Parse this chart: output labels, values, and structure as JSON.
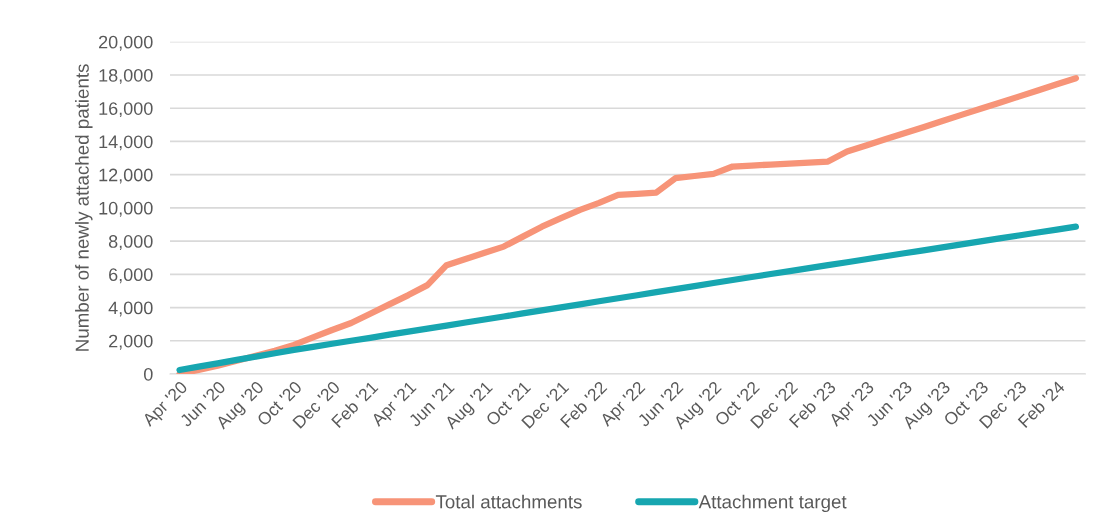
{
  "chart_data": {
    "type": "line",
    "ylabel": "Number of newly attached patients",
    "categories": [
      "Apr '20",
      null,
      "Jun '20",
      null,
      "Aug '20",
      null,
      "Oct '20",
      null,
      "Dec '20",
      null,
      "Feb '21",
      null,
      "Apr '21",
      null,
      "Jun '21",
      null,
      "Aug '21",
      null,
      "Oct '21",
      null,
      "Dec '21",
      null,
      "Feb '22",
      null,
      "Apr '22",
      null,
      "Jun '22",
      null,
      "Aug '22",
      null,
      "Oct '22",
      null,
      "Dec '22",
      null,
      "Feb '23",
      null,
      "Apr '23",
      null,
      "Jun '23",
      null,
      "Aug '23",
      null,
      "Oct '23",
      null,
      "Dec '23",
      null,
      "Feb '24",
      null
    ],
    "series": [
      {
        "name": "Total attachments",
        "color": "#f79478",
        "values": [
          0,
          250,
          500,
          800,
          1100,
          1400,
          1750,
          2200,
          2650,
          3070,
          3630,
          4190,
          4750,
          5350,
          6550,
          6920,
          7300,
          7670,
          8270,
          8870,
          9380,
          9880,
          10300,
          10780,
          10850,
          10920,
          11790,
          11920,
          12050,
          12490,
          12550,
          12610,
          12670,
          12730,
          12790,
          13390,
          13760,
          14130,
          14490,
          14860,
          15230,
          15600,
          15970,
          16330,
          16700,
          17070,
          17440,
          17810
        ]
      },
      {
        "name": "Attachment target",
        "color": "#17a6b0",
        "values": [
          240,
          440,
          640,
          850,
          1050,
          1250,
          1450,
          1630,
          1820,
          2000,
          2180,
          2370,
          2550,
          2730,
          2910,
          3100,
          3280,
          3460,
          3650,
          3830,
          4010,
          4190,
          4380,
          4560,
          4740,
          4930,
          5110,
          5290,
          5480,
          5660,
          5840,
          6020,
          6190,
          6370,
          6550,
          6730,
          6910,
          7090,
          7270,
          7440,
          7620,
          7800,
          7980,
          8160,
          8340,
          8520,
          8690,
          8870
        ]
      }
    ],
    "ylim": [
      0,
      20000
    ],
    "yticks": [
      {
        "value": 0,
        "label": "0"
      },
      {
        "value": 2000,
        "label": "2,000"
      },
      {
        "value": 4000,
        "label": "4,000"
      },
      {
        "value": 6000,
        "label": "6,000"
      },
      {
        "value": 8000,
        "label": "8,000"
      },
      {
        "value": 10000,
        "label": "10,000"
      },
      {
        "value": 12000,
        "label": "12,000"
      },
      {
        "value": 14000,
        "label": "14,000"
      },
      {
        "value": 16000,
        "label": "16,000"
      },
      {
        "value": 18000,
        "label": "18,000"
      },
      {
        "value": 20000,
        "label": "20,000"
      }
    ],
    "grid": "y",
    "legend": "bottom",
    "marker": "none",
    "line_style": "solid"
  }
}
